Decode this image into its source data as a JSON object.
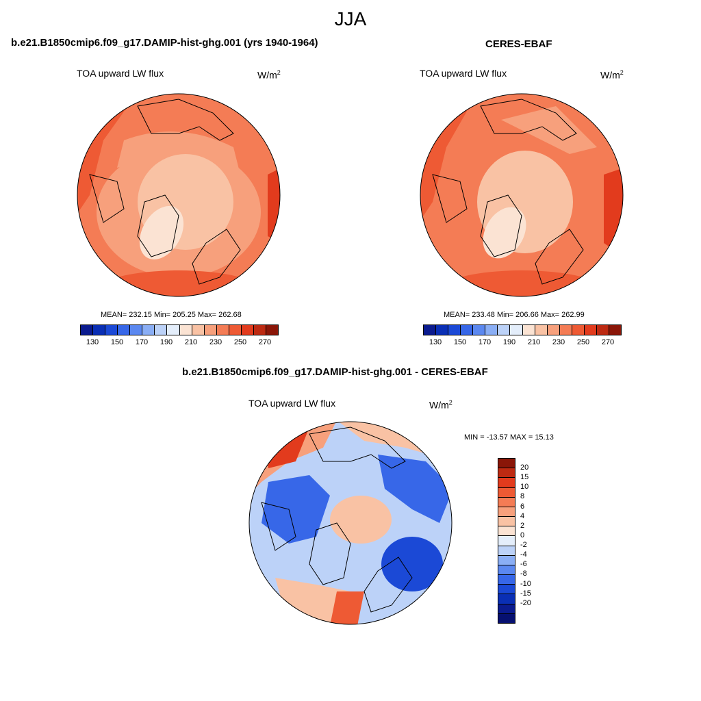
{
  "season": "JJA",
  "panels": {
    "model": {
      "title": "b.e21.B1850cmip6.f09_g17.DAMIP-hist-ghg.001 (yrs 1940-1964)",
      "field": "TOA upward LW flux",
      "units": "W/m",
      "units_sup": "2",
      "stats": "MEAN= 232.15  Min= 205.25  Max= 262.68"
    },
    "obs": {
      "title": "CERES-EBAF",
      "field": "TOA upward LW flux",
      "units": "W/m",
      "units_sup": "2",
      "stats": "MEAN= 233.48  Min= 206.66  Max= 262.99"
    },
    "diff": {
      "title": "b.e21.B1850cmip6.f09_g17.DAMIP-hist-ghg.001 - CERES-EBAF",
      "field": "TOA upward LW flux",
      "units": "W/m",
      "units_sup": "2",
      "stats": "MIN = -13.57 MAX =  15.13"
    }
  },
  "colorbar_abs": {
    "colors": [
      "#0b1b8f",
      "#0a2fb5",
      "#1b49d6",
      "#3767e8",
      "#5b88f0",
      "#8aaef5",
      "#bcd2f8",
      "#e4eefb",
      "#fbe3d3",
      "#f9c2a4",
      "#f7a07c",
      "#f47c55",
      "#ee5a34",
      "#e23b1d",
      "#bd2a12",
      "#8a1608"
    ],
    "tick_labels": [
      "130",
      "150",
      "170",
      "190",
      "210",
      "230",
      "250",
      "270"
    ]
  },
  "colorbar_diff": {
    "colors": [
      "#8a1608",
      "#bd2a12",
      "#e23b1d",
      "#ee5a34",
      "#f47c55",
      "#f7a07c",
      "#f9c2a4",
      "#fbe3d3",
      "#e4eefb",
      "#bcd2f8",
      "#8aaef5",
      "#5b88f0",
      "#3767e8",
      "#1b49d6",
      "#0a2fb5",
      "#0b1b8f",
      "#061070"
    ],
    "tick_labels": [
      "20",
      "15",
      "10",
      "8",
      "6",
      "4",
      "2",
      "0",
      "-2",
      "-4",
      "-6",
      "-8",
      "-10",
      "-15",
      "-20"
    ]
  }
}
